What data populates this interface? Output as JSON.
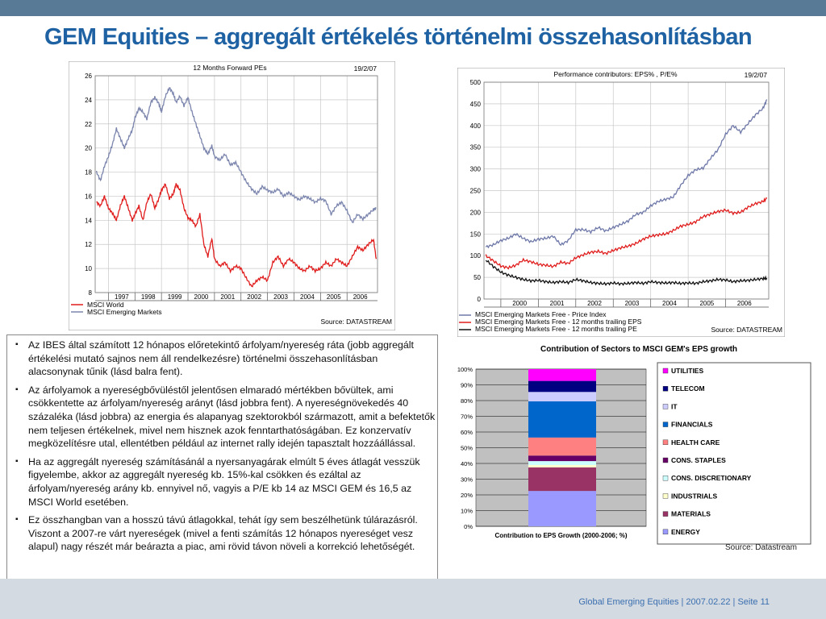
{
  "page": {
    "title": "GEM Equities – aggregált értékelés történelmi összehasonlításban",
    "footer": "Global Emerging Equities | 2007.02.22 | Seite 11",
    "bullets": [
      "Az IBES által számított 12 hónapos előretekintő árfolyam/nyereség ráta (jobb aggregált értékelési mutató sajnos nem áll rendelkezésre) történelmi összehasonlításban alacsonynak tűnik (lásd balra fent).",
      "Az árfolyamok a nyereségbővüléstől jelentősen elmaradó mértékben bővültek, ami csökkentette az árfolyam/nyereség arányt (lásd jobbra fent). A nyereségnövekedés 40 százaléka (lásd jobbra) az energia és alapanyag szektorokból származott, amit a befektetők nem teljesen értékelnek, mivel nem hisznek azok fenntarthatóságában. Ez konzervatív megközelítésre utal, ellentétben például az internet rally idején tapasztalt hozzáállással.",
      "Ha az aggregált nyereség számításánál a nyersanyagárak elmúlt 5 éves átlagát vesszük figyelembe, akkor az aggregált nyereség kb. 15%-kal csökken és ezáltal az árfolyam/nyereség arány kb. ennyivel nő, vagyis a P/E kb 14 az MSCI GEM és 16,5 az MSCI World esetében.",
      "Ez összhangban van a hosszú távú átlagokkal, tehát így sem beszélhetünk túlárazásról. Viszont a 2007-re várt nyereségek (mivel a fenti számítás 12 hónapos nyereséget vesz alapul) nagy részét már beárazta a piac, ami rövid távon növeli a korrekció lehetőségét."
    ]
  },
  "chart_data": [
    {
      "type": "line",
      "title": "12 Months Forward PEs",
      "date": "19/2/07",
      "source": "Source: DATASTREAM",
      "ylim": [
        8,
        26
      ],
      "yticks": [
        8,
        10,
        12,
        14,
        16,
        18,
        20,
        22,
        24,
        26
      ],
      "xlim": [
        1996.5,
        2007.15
      ],
      "xticks": [
        "1997",
        "1998",
        "1999",
        "2000",
        "2001",
        "2002",
        "2003",
        "2004",
        "2005",
        "2006"
      ],
      "grid": true,
      "legend_position": "bottom-left",
      "series": [
        {
          "name": "MSCI World",
          "color": "#e01c1c",
          "x": [
            1996.55,
            1996.7,
            1996.85,
            1997.0,
            1997.15,
            1997.3,
            1997.45,
            1997.6,
            1997.75,
            1997.9,
            1998.0,
            1998.15,
            1998.3,
            1998.45,
            1998.6,
            1998.75,
            1998.9,
            1999.0,
            1999.15,
            1999.3,
            1999.45,
            1999.55,
            1999.7,
            1999.85,
            2000.0,
            2000.15,
            2000.3,
            2000.45,
            2000.6,
            2000.75,
            2000.9,
            2001.0,
            2001.2,
            2001.4,
            2001.6,
            2001.8,
            2002.0,
            2002.2,
            2002.4,
            2002.6,
            2002.8,
            2003.0,
            2003.2,
            2003.4,
            2003.6,
            2003.8,
            2004.0,
            2004.2,
            2004.4,
            2004.6,
            2004.8,
            2005.0,
            2005.2,
            2005.4,
            2005.6,
            2005.8,
            2006.0,
            2006.2,
            2006.4,
            2006.6,
            2006.8,
            2007.0,
            2007.1
          ],
          "y": [
            15.5,
            15.2,
            16.0,
            15.0,
            14.6,
            14.0,
            15.2,
            16.0,
            15.0,
            14.0,
            14.5,
            15.2,
            14.0,
            15.5,
            16.2,
            15.0,
            15.8,
            16.5,
            17.0,
            15.8,
            16.2,
            17.0,
            16.5,
            15.0,
            14.2,
            14.0,
            13.5,
            14.5,
            12.0,
            11.0,
            12.5,
            10.8,
            10.2,
            10.5,
            9.8,
            10.2,
            10.0,
            9.2,
            8.5,
            9.0,
            9.3,
            9.0,
            10.5,
            11.0,
            10.2,
            10.8,
            10.5,
            10.0,
            9.8,
            10.2,
            9.8,
            10.0,
            10.5,
            10.2,
            10.8,
            10.5,
            10.2,
            11.0,
            11.8,
            11.5,
            12.0,
            12.4,
            10.8
          ]
        },
        {
          "name": "MSCI Emerging Markets",
          "color": "#7b85ad",
          "x": [
            1996.55,
            1996.7,
            1996.85,
            1997.0,
            1997.15,
            1997.3,
            1997.45,
            1997.6,
            1997.75,
            1997.9,
            1998.0,
            1998.15,
            1998.3,
            1998.45,
            1998.6,
            1998.75,
            1998.9,
            1999.0,
            1999.15,
            1999.3,
            1999.45,
            1999.55,
            1999.7,
            1999.85,
            2000.0,
            2000.15,
            2000.3,
            2000.45,
            2000.6,
            2000.75,
            2000.9,
            2001.0,
            2001.2,
            2001.4,
            2001.6,
            2001.8,
            2002.0,
            2002.2,
            2002.4,
            2002.6,
            2002.8,
            2003.0,
            2003.2,
            2003.4,
            2003.6,
            2003.8,
            2004.0,
            2004.2,
            2004.4,
            2004.6,
            2004.8,
            2005.0,
            2005.2,
            2005.4,
            2005.6,
            2005.8,
            2006.0,
            2006.2,
            2006.4,
            2006.6,
            2006.8,
            2007.0,
            2007.1
          ],
          "y": [
            18.0,
            17.3,
            18.5,
            19.3,
            20.3,
            21.6,
            20.8,
            20.0,
            20.8,
            21.5,
            22.5,
            23.3,
            23.0,
            22.4,
            23.8,
            24.2,
            23.7,
            23.0,
            24.3,
            25.0,
            24.5,
            23.8,
            24.3,
            23.5,
            24.2,
            23.0,
            22.0,
            21.0,
            20.0,
            19.5,
            20.2,
            19.3,
            19.0,
            19.5,
            18.6,
            18.8,
            18.0,
            17.2,
            16.6,
            16.2,
            16.8,
            16.5,
            16.3,
            16.6,
            16.0,
            16.3,
            16.0,
            15.7,
            16.0,
            15.8,
            15.5,
            15.8,
            15.6,
            14.5,
            15.2,
            15.5,
            14.8,
            13.8,
            14.5,
            14.1,
            14.5,
            14.9,
            15.0
          ]
        }
      ]
    },
    {
      "type": "line",
      "title": "Performance contributors: EPS% , P/E%",
      "date": "19/2/07",
      "source": "Source: DATASTREAM",
      "ylim": [
        0,
        500
      ],
      "yticks": [
        0,
        50,
        100,
        150,
        200,
        250,
        300,
        350,
        400,
        450,
        500
      ],
      "xlim": [
        1999.55,
        2007.15
      ],
      "xticks": [
        "2000",
        "2001",
        "2002",
        "2003",
        "2004",
        "2005",
        "2006"
      ],
      "grid": true,
      "legend_position": "bottom-left",
      "series": [
        {
          "name": "MSCI Emerging Markets Free - Price Index",
          "color": "#6e78a8",
          "x": [
            1999.6,
            1999.8,
            2000.0,
            2000.2,
            2000.4,
            2000.6,
            2000.8,
            2001.0,
            2001.2,
            2001.4,
            2001.6,
            2001.8,
            2002.0,
            2002.2,
            2002.4,
            2002.6,
            2002.8,
            2003.0,
            2003.2,
            2003.4,
            2003.6,
            2003.8,
            2004.0,
            2004.2,
            2004.4,
            2004.6,
            2004.8,
            2005.0,
            2005.2,
            2005.4,
            2005.6,
            2005.8,
            2006.0,
            2006.2,
            2006.4,
            2006.6,
            2006.8,
            2007.0,
            2007.1
          ],
          "y": [
            120,
            125,
            135,
            140,
            150,
            140,
            132,
            138,
            140,
            145,
            125,
            135,
            160,
            160,
            155,
            165,
            157,
            165,
            172,
            180,
            195,
            200,
            215,
            225,
            230,
            235,
            262,
            285,
            298,
            302,
            325,
            345,
            380,
            400,
            385,
            405,
            425,
            440,
            460
          ]
        },
        {
          "name": "MSCI Emerging Markets Free - 12 months trailing EPS",
          "color": "#e01c1c",
          "x": [
            1999.6,
            1999.8,
            2000.0,
            2000.2,
            2000.4,
            2000.6,
            2000.8,
            2001.0,
            2001.2,
            2001.4,
            2001.6,
            2001.8,
            2002.0,
            2002.2,
            2002.4,
            2002.6,
            2002.8,
            2003.0,
            2003.2,
            2003.4,
            2003.6,
            2003.8,
            2004.0,
            2004.2,
            2004.4,
            2004.6,
            2004.8,
            2005.0,
            2005.2,
            2005.4,
            2005.6,
            2005.8,
            2006.0,
            2006.2,
            2006.4,
            2006.6,
            2006.8,
            2007.0,
            2007.1
          ],
          "y": [
            100,
            88,
            76,
            72,
            78,
            90,
            86,
            80,
            78,
            75,
            85,
            82,
            95,
            102,
            108,
            110,
            105,
            112,
            118,
            122,
            128,
            138,
            145,
            148,
            150,
            158,
            168,
            172,
            178,
            190,
            196,
            202,
            205,
            198,
            200,
            212,
            220,
            225,
            232
          ]
        },
        {
          "name": "MSCI Emerging Markets Free - 12 months trailing PE",
          "color": "#111111",
          "x": [
            1999.6,
            1999.8,
            2000.0,
            2000.2,
            2000.4,
            2000.6,
            2000.8,
            2001.0,
            2001.2,
            2001.4,
            2001.6,
            2001.8,
            2002.0,
            2002.2,
            2002.4,
            2002.6,
            2002.8,
            2003.0,
            2003.2,
            2003.4,
            2003.6,
            2003.8,
            2004.0,
            2004.2,
            2004.4,
            2004.6,
            2004.8,
            2005.0,
            2005.2,
            2005.4,
            2005.6,
            2005.8,
            2006.0,
            2006.2,
            2006.4,
            2006.6,
            2006.8,
            2007.0,
            2007.1
          ],
          "y": [
            90,
            75,
            62,
            55,
            50,
            45,
            42,
            43,
            40,
            38,
            40,
            38,
            45,
            42,
            38,
            36,
            35,
            37,
            35,
            36,
            38,
            36,
            40,
            38,
            37,
            38,
            36,
            37,
            36,
            40,
            42,
            45,
            44,
            40,
            42,
            43,
            45,
            47,
            48
          ]
        }
      ]
    },
    {
      "type": "bar",
      "stacked": true,
      "title": "Contribution of Sectors to MSCI GEM's  EPS growth",
      "xlabel": "Contribution to EPS Growth (2000-2006; %)",
      "source": "Source: Datastream",
      "ylim": [
        0,
        100
      ],
      "yticks": [
        "0%",
        "10%",
        "20%",
        "30%",
        "40%",
        "50%",
        "60%",
        "70%",
        "80%",
        "90%",
        "100%"
      ],
      "legend_position": "right",
      "segments": [
        {
          "name": "ENERGY",
          "value": 22.5,
          "color": "#9999ff"
        },
        {
          "name": "MATERIALS",
          "value": 15.0,
          "color": "#993366"
        },
        {
          "name": "INDUSTRIALS",
          "value": 1.5,
          "color": "#ffffcc"
        },
        {
          "name": "CONS. DISCRETIONARY",
          "value": 2.5,
          "color": "#ccffff"
        },
        {
          "name": "CONS. STAPLES",
          "value": 3.5,
          "color": "#660066"
        },
        {
          "name": "HEALTH CARE",
          "value": 11.5,
          "color": "#ff8080"
        },
        {
          "name": "FINANCIALS",
          "value": 23.0,
          "color": "#0066cc"
        },
        {
          "name": "IT",
          "value": 6.0,
          "color": "#ccccff"
        },
        {
          "name": "TELECOM",
          "value": 7.0,
          "color": "#000080"
        },
        {
          "name": "UTILITIES",
          "value": 7.5,
          "color": "#ff00ff"
        }
      ]
    }
  ]
}
